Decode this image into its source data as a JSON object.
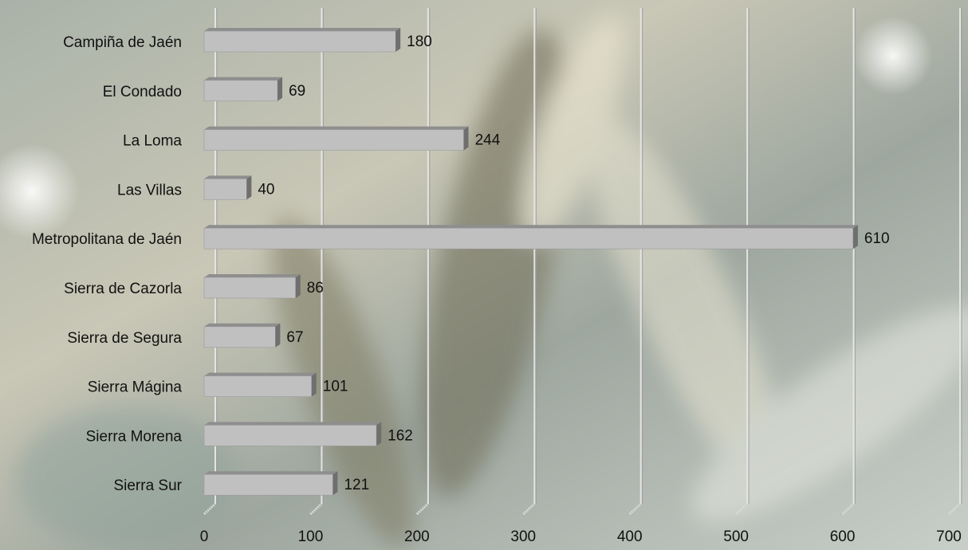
{
  "chart_data": {
    "type": "bar",
    "orientation": "horizontal",
    "categories": [
      "Campiña de Jaén",
      "El Condado",
      "La Loma",
      "Las Villas",
      "Metropolitana de Jaén",
      "Sierra de Cazorla",
      "Sierra de Segura",
      "Sierra Mágina",
      "Sierra Morena",
      "Sierra Sur"
    ],
    "values": [
      180,
      69,
      244,
      40,
      610,
      86,
      67,
      101,
      162,
      121
    ],
    "color": "#c0c0c0",
    "xlim": [
      0,
      700
    ],
    "xticks": [
      0,
      100,
      200,
      300,
      400,
      500,
      600,
      700
    ],
    "grid": true
  }
}
